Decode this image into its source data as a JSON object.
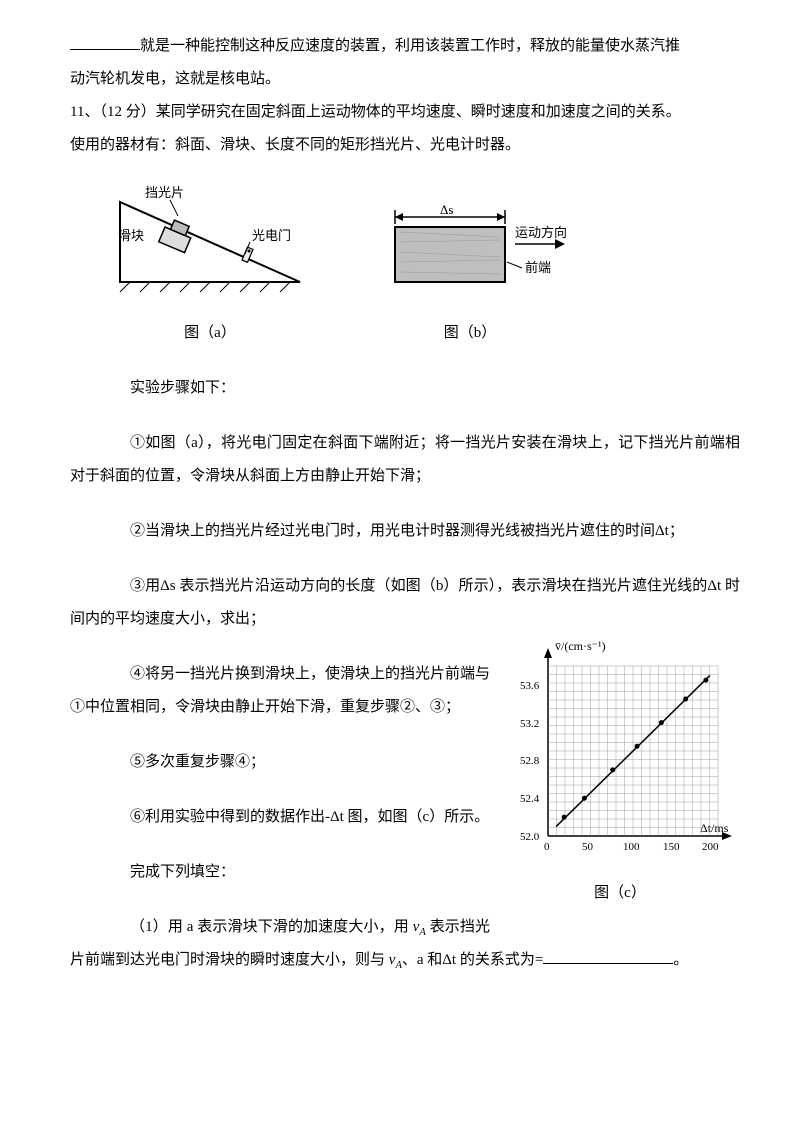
{
  "intro": {
    "line1_tail": "就是一种能控制这种反应速度的装置，利用该装置工作时，释放的能量使水蒸汽推",
    "line2": "动汽轮机发电，这就是核电站。"
  },
  "q11": {
    "header": "11、（12 分）某同学研究在固定斜面上运动物体的平均速度、瞬时速度和加速度之间的关系。",
    "materials": "使用的器材有：斜面、滑块、长度不同的矩形挡光片、光电计时器。"
  },
  "fig_a": {
    "label_block": "挡光片",
    "label_slider": "滑块",
    "label_gate": "光电门",
    "caption": "图（a）"
  },
  "fig_b": {
    "delta_s": "Δs",
    "motion_dir": "运动方向",
    "front": "前端",
    "caption": "图（b）"
  },
  "steps": {
    "title": "实验步骤如下：",
    "s1": "①如图（a），将光电门固定在斜面下端附近；将一挡光片安装在滑块上，记下挡光片前端相对于斜面的位置，令滑块从斜面上方由静止开始下滑；",
    "s2": "②当滑块上的挡光片经过光电门时，用光电计时器测得光线被挡光片遮住的时间Δt；",
    "s3_a": "③用Δs 表示挡光片沿运动方向的长度（如图（b）所示），表示滑块在挡光片遮住光线的Δt 时间内的平均速度大小，求出；",
    "s4": "④将另一挡光片换到滑块上，使滑块上的挡光片前端与①中位置相同，令滑块由静止开始下滑，重复步骤②、③；",
    "s5": "⑤多次重复步骤④；",
    "s6": "⑥利用实验中得到的数据作出-Δt 图，如图（c）所示。",
    "fill": "完成下列填空：",
    "q1_a": "（1）用 a 表示滑块下滑的加速度大小，用 ",
    "q1_va": "v",
    "q1_sub": "A",
    "q1_b": " 表示挡光片前端到达光电门时滑块的瞬时速度大小，则与 ",
    "q1_c": "、a 和Δt 的关系式为=",
    "q1_end": "。"
  },
  "chart": {
    "ylabel": "v̄/(cm·s⁻¹)",
    "xlabel": "Δt/ms",
    "caption": "图（c）",
    "yticks": [
      "52.0",
      "52.4",
      "52.8",
      "53.2",
      "53.6"
    ],
    "xticks": [
      "0",
      "50",
      "100",
      "150",
      "200"
    ],
    "y_min": 52.0,
    "y_max": 53.8,
    "x_min": 0,
    "x_max": 210,
    "grid_color": "#888888",
    "axis_color": "#000000",
    "point_color": "#000000",
    "points": [
      {
        "x": 20,
        "y": 52.2
      },
      {
        "x": 45,
        "y": 52.4
      },
      {
        "x": 80,
        "y": 52.7
      },
      {
        "x": 110,
        "y": 52.95
      },
      {
        "x": 140,
        "y": 53.2
      },
      {
        "x": 170,
        "y": 53.45
      },
      {
        "x": 195,
        "y": 53.65
      }
    ],
    "line": {
      "x1": 10,
      "y1": 52.1,
      "x2": 200,
      "y2": 53.7
    }
  }
}
